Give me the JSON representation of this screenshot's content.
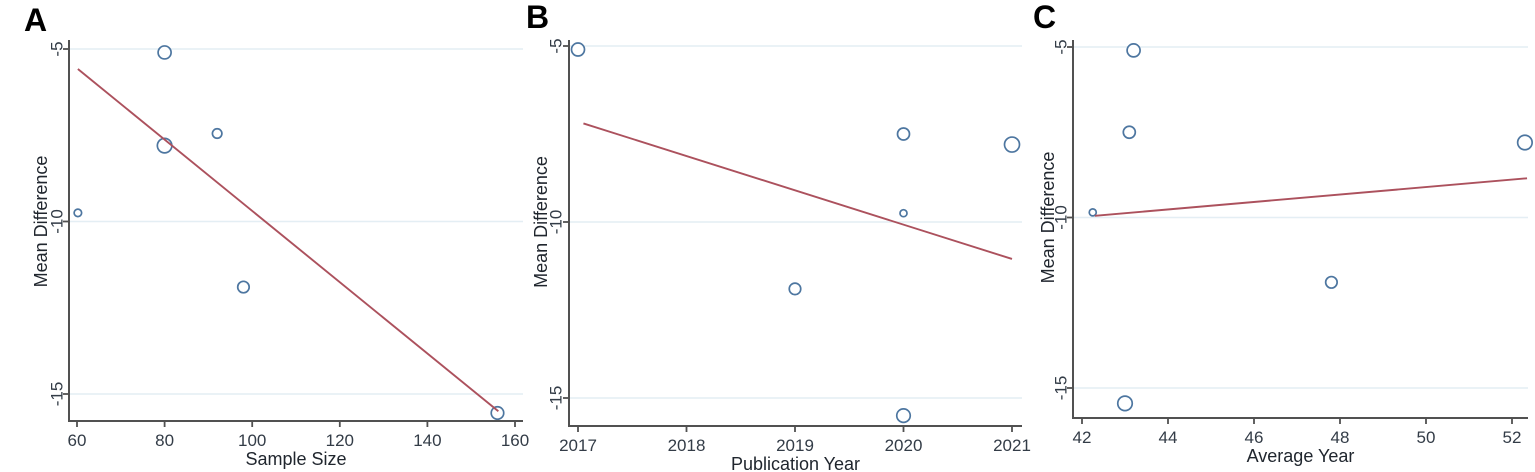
{
  "figure": {
    "background": "#ffffff",
    "colors": {
      "marker": "#4d76a0",
      "marker_fill": "#ffffff",
      "trend": "#ac515d",
      "grid": "#e4eef4",
      "axis": "#515151",
      "tick_text": "#333c47",
      "label_text": "#20262e",
      "panel_letter": "#000000"
    }
  },
  "chart_data": [
    {
      "type": "scatter",
      "panel_label": "A",
      "xlabel": "Sample Size",
      "ylabel": "Mean Difference",
      "x_ticks": [
        60,
        80,
        100,
        120,
        140,
        160
      ],
      "y_ticks": [
        -5,
        -10,
        -15
      ],
      "xlim": [
        58,
        162
      ],
      "ylim": [
        -15.9,
        -4.7
      ],
      "grid": "horizontal",
      "legend": "none",
      "points": [
        {
          "x": 80,
          "y": -5.1,
          "size": 13
        },
        {
          "x": 92,
          "y": -7.45,
          "size": 9.5
        },
        {
          "x": 80,
          "y": -7.8,
          "size": 14.5
        },
        {
          "x": 60.2,
          "y": -9.75,
          "size": 7.5
        },
        {
          "x": 98,
          "y": -11.9,
          "size": 11.5
        },
        {
          "x": 156,
          "y": -15.55,
          "size": 12.5
        }
      ],
      "regression_line": {
        "x1": 60.2,
        "y1": -5.58,
        "x2": 156.2,
        "y2": -15.5
      }
    },
    {
      "type": "scatter",
      "panel_label": "B",
      "xlabel": "Publication Year",
      "ylabel": "Mean Difference",
      "x_ticks": [
        2017,
        2018,
        2019,
        2020,
        2021
      ],
      "y_ticks": [
        -5,
        -10,
        -15
      ],
      "xlim": [
        2016.9,
        2021.1
      ],
      "ylim": [
        -15.9,
        -4.7
      ],
      "grid": "horizontal",
      "legend": "none",
      "points": [
        {
          "x": 2017,
          "y": -5.1,
          "size": 13
        },
        {
          "x": 2020,
          "y": -7.5,
          "size": 12
        },
        {
          "x": 2021,
          "y": -7.8,
          "size": 15
        },
        {
          "x": 2020,
          "y": -9.75,
          "size": 7
        },
        {
          "x": 2019,
          "y": -11.9,
          "size": 11.5
        },
        {
          "x": 2020,
          "y": -15.5,
          "size": 13.5
        }
      ],
      "regression_line": {
        "x1": 2017.05,
        "y1": -7.2,
        "x2": 2021.0,
        "y2": -11.05
      }
    },
    {
      "type": "scatter",
      "panel_label": "C",
      "xlabel": "Average Year",
      "ylabel": "Mean Difference",
      "x_ticks": [
        42,
        44,
        46,
        48,
        50,
        52
      ],
      "y_ticks": [
        -5,
        -10,
        -15
      ],
      "xlim": [
        41.8,
        52.6
      ],
      "ylim": [
        -15.9,
        -4.7
      ],
      "grid": "horizontal",
      "legend": "none",
      "points": [
        {
          "x": 43.2,
          "y": -5.1,
          "size": 13
        },
        {
          "x": 43.1,
          "y": -7.5,
          "size": 12
        },
        {
          "x": 52.3,
          "y": -7.8,
          "size": 14.5
        },
        {
          "x": 42.25,
          "y": -9.85,
          "size": 7
        },
        {
          "x": 47.8,
          "y": -11.9,
          "size": 11.5
        },
        {
          "x": 43.0,
          "y": -15.45,
          "size": 14.5
        }
      ],
      "regression_line": {
        "x1": 42.3,
        "y1": -9.95,
        "x2": 52.35,
        "y2": -8.85
      }
    }
  ]
}
